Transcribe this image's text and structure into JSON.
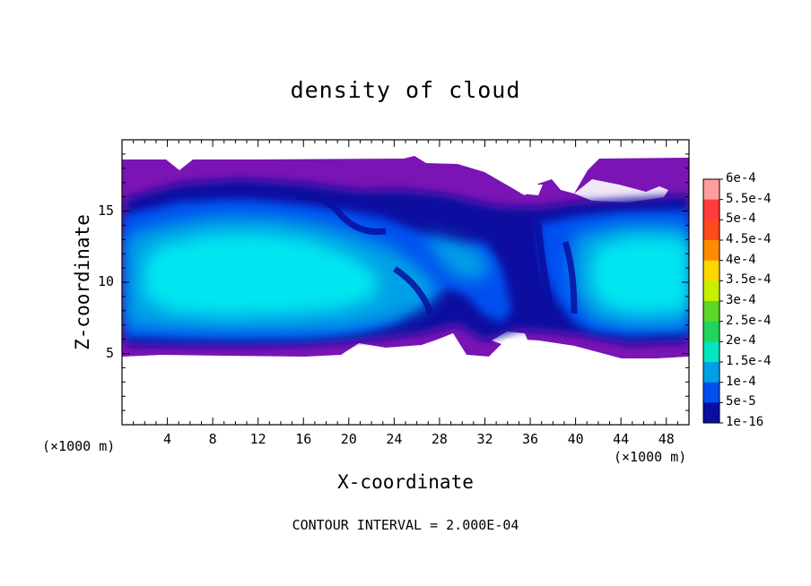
{
  "chart_data": {
    "type": "heatmap",
    "title": "density of cloud",
    "xlabel": "X-coordinate",
    "ylabel": "Z-coordinate",
    "x_unit_label": "(×1000 m)",
    "xlim": [
      0,
      50
    ],
    "ylim": [
      0,
      20
    ],
    "x_ticks": [
      4,
      8,
      12,
      16,
      20,
      24,
      28,
      32,
      36,
      40,
      44,
      48
    ],
    "y_ticks": [
      5,
      10,
      15
    ],
    "footer": "CONTOUR INTERVAL = 2.000E-04",
    "colorbar": {
      "labels": [
        "6e-4",
        "5.5e-4",
        "5e-4",
        "4.5e-4",
        "4e-4",
        "3.5e-4",
        "3e-4",
        "2.5e-4",
        "2e-4",
        "1.5e-4",
        "1e-4",
        "5e-5",
        "1e-16"
      ],
      "colors": [
        "#ff9d9d",
        "#ff3b3b",
        "#ff4a1c",
        "#ff8c00",
        "#ffd700",
        "#c6f000",
        "#5ed62a",
        "#22d45a",
        "#00e6c0",
        "#00a0e6",
        "#004ff0",
        "#0a0fa0",
        "#7a14b4"
      ]
    },
    "cloud_field": {
      "levels_value": [
        "1e-16",
        "5e-5",
        "1e-4",
        "1.5e-4",
        "2e-4"
      ],
      "core_max": "2e-4",
      "layer_z_range": [
        5,
        18.5
      ]
    }
  }
}
